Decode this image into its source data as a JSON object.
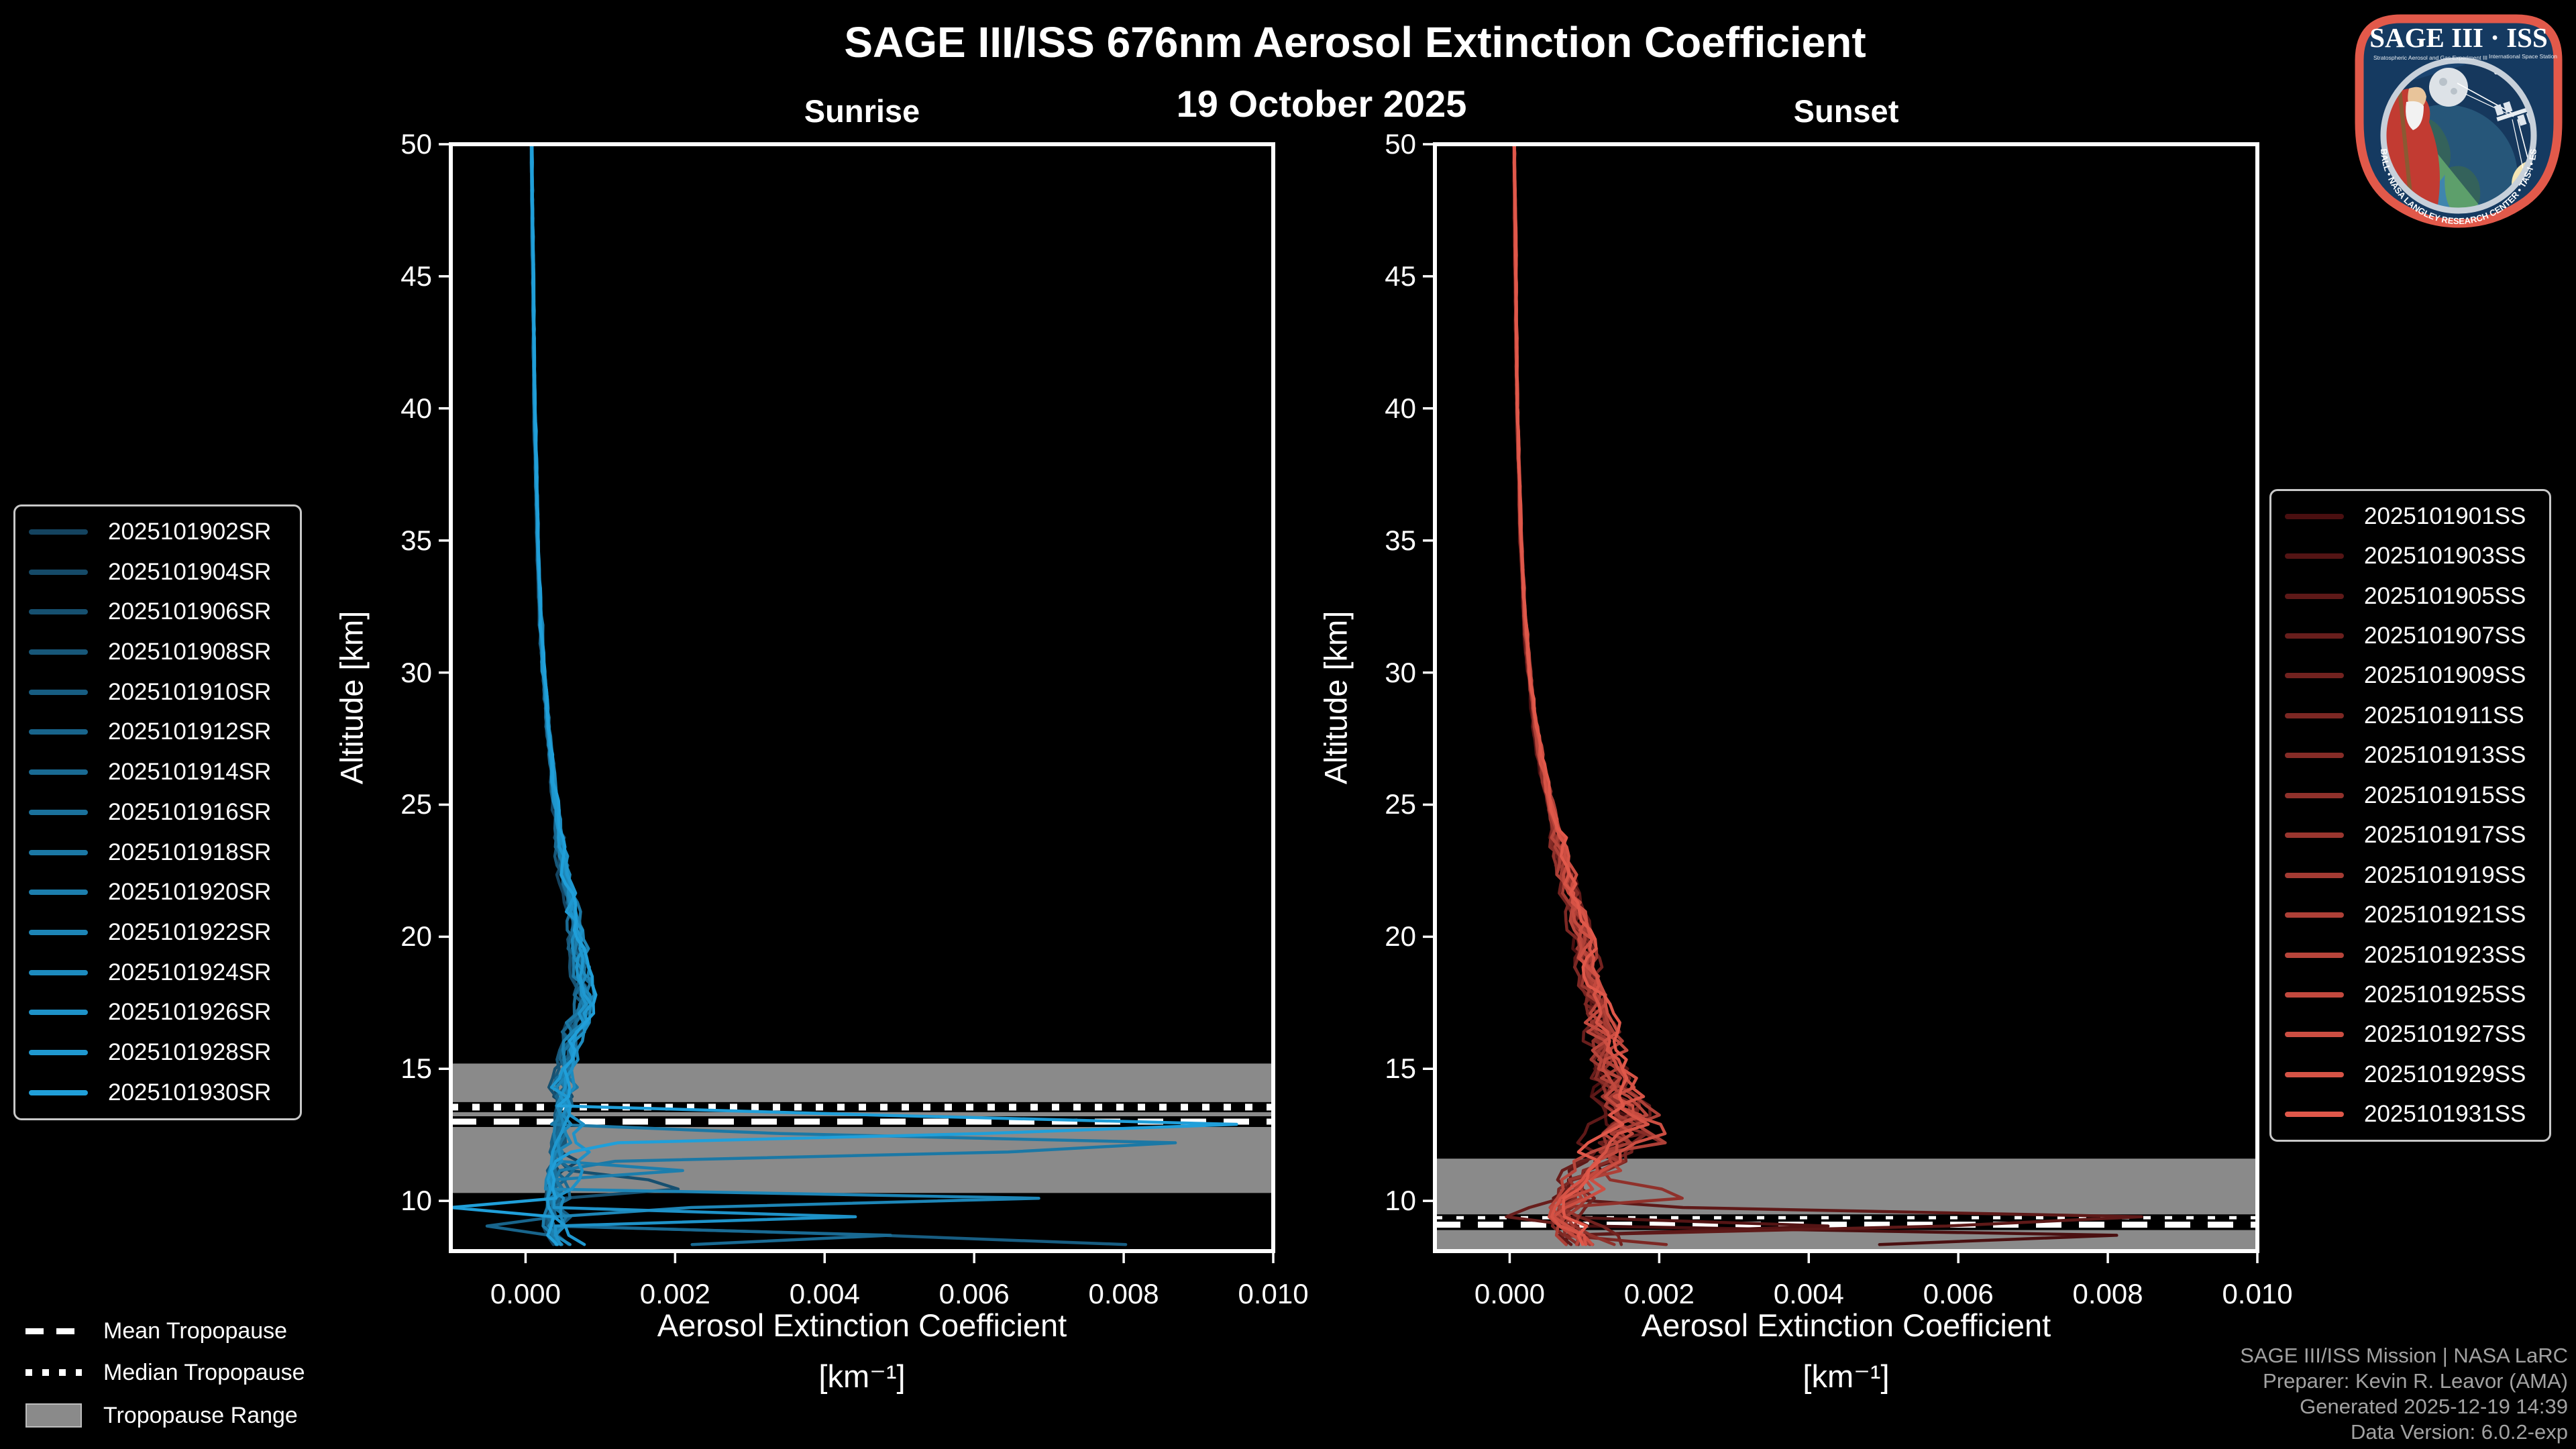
{
  "figure": {
    "title": "SAGE III/ISS 676nm Aerosol Extinction Coefficient",
    "subtitle": "19 October 2025",
    "background_color": "#000000",
    "footer": {
      "color": "#a2a2a2",
      "lines": [
        "SAGE III/ISS Mission | NASA LaRC",
        "Preparer: Kevin R. Leavor (AMA)",
        "Generated 2025-12-19 14:39",
        "Data Version: 6.0.2-exp"
      ]
    },
    "logo": {
      "title": "SAGE III · ISS",
      "subtitle_left": "Stratospheric Aerosol and Gas Experiment III",
      "subtitle_right": "International Space Station",
      "ring_text": "BALL • NASA LANGLEY RESEARCH CENTER • TAS-I • ESA",
      "border_color": "#e2594a",
      "background_color": "#153a61"
    },
    "tropopause_legend": {
      "mean_label": "Mean Tropopause",
      "median_label": "Median Tropopause",
      "range_label": "Tropopause Range",
      "range_color": "#8a8a8a"
    }
  },
  "chart_data": {
    "type": "line",
    "title": "SAGE III/ISS 676nm Aerosol Extinction Coefficient",
    "subtitle": "19 October 2025",
    "xlabel_line1": "Aerosol Extinction Coefficient",
    "xlabel_line2": "[km⁻¹]",
    "ylabel": "Altitude [km]",
    "xlim": [
      -0.001,
      0.01
    ],
    "ylim": [
      8.1,
      50
    ],
    "grid": false,
    "xtick_values": [
      0.0,
      0.002,
      0.004,
      0.006,
      0.008,
      0.01
    ],
    "xtick_labels": [
      "0.000",
      "0.002",
      "0.004",
      "0.006",
      "0.008",
      "0.010"
    ],
    "ytick_values": [
      10,
      15,
      20,
      25,
      30,
      35,
      40,
      45,
      50
    ],
    "tropopause_band_color": "#8a8a8a",
    "panels": [
      {
        "id": "sunrise",
        "title": "Sunrise",
        "legend_position": "outside-left",
        "color_start": "#14435f",
        "color_end": "#209fd9",
        "seed": 11,
        "series_labels": [
          "2025101902SR",
          "2025101904SR",
          "2025101906SR",
          "2025101908SR",
          "2025101910SR",
          "2025101912SR",
          "2025101914SR",
          "2025101916SR",
          "2025101918SR",
          "2025101920SR",
          "2025101922SR",
          "2025101924SR",
          "2025101926SR",
          "2025101928SR",
          "2025101930SR"
        ],
        "tropopause": {
          "mean_km": 13.0,
          "median_km": 13.55,
          "range_km": [
            10.3,
            15.2
          ]
        },
        "mean_profile": [
          [
            50,
            8e-05
          ],
          [
            45,
            0.0001
          ],
          [
            40,
            0.00012
          ],
          [
            35,
            0.00016
          ],
          [
            32,
            0.0002
          ],
          [
            30,
            0.00024
          ],
          [
            28,
            0.0003
          ],
          [
            26,
            0.00036
          ],
          [
            24,
            0.00044
          ],
          [
            22,
            0.00054
          ],
          [
            20,
            0.00066
          ],
          [
            19,
            0.00074
          ],
          [
            18,
            0.00082
          ],
          [
            17.3,
            0.00078
          ],
          [
            16.5,
            0.00065
          ],
          [
            15.5,
            0.00056
          ],
          [
            14.5,
            0.00052
          ],
          [
            13.5,
            0.0005
          ],
          [
            12.5,
            0.00046
          ],
          [
            11.5,
            0.00043
          ],
          [
            10.5,
            0.0004
          ],
          [
            9.5,
            0.00036
          ],
          [
            8.8,
            0.0004
          ],
          [
            8.3,
            0.0005
          ]
        ],
        "spikes": [
          {
            "series": 14,
            "altitude_km": 12.85,
            "peak": 0.0102,
            "width_km": 1.4
          },
          {
            "series": 8,
            "altitude_km": 12.1,
            "peak": 0.0102,
            "width_km": 1.3
          },
          {
            "series": 10,
            "altitude_km": 10.05,
            "peak": 0.0078,
            "width_km": 0.8
          },
          {
            "series": 4,
            "altitude_km": 8.45,
            "peak": 0.0102,
            "width_km": 0.9
          },
          {
            "series": 6,
            "altitude_km": 8.6,
            "peak": 0.0067,
            "width_km": 0.7
          },
          {
            "series": 12,
            "altitude_km": 9.35,
            "peak": 0.0052,
            "width_km": 0.6
          },
          {
            "series": 2,
            "altitude_km": 10.6,
            "peak": 0.0033,
            "width_km": 0.7
          },
          {
            "series": 9,
            "altitude_km": 11.2,
            "peak": 0.0025,
            "width_km": 0.5
          },
          {
            "series": 14,
            "altitude_km": 9.75,
            "peak": -0.001,
            "width_km": 0.45
          },
          {
            "series": 5,
            "altitude_km": 9.0,
            "peak": -0.0008,
            "width_km": 0.4
          }
        ]
      },
      {
        "id": "sunset",
        "title": "Sunset",
        "legend_position": "outside-right",
        "color_start": "#4a0f10",
        "color_end": "#e0584a",
        "seed": 77,
        "series_labels": [
          "2025101901SS",
          "2025101903SS",
          "2025101905SS",
          "2025101907SS",
          "2025101909SS",
          "2025101911SS",
          "2025101913SS",
          "2025101915SS",
          "2025101917SS",
          "2025101919SS",
          "2025101921SS",
          "2025101923SS",
          "2025101925SS",
          "2025101927SS",
          "2025101929SS",
          "2025101931SS"
        ],
        "tropopause": {
          "mean_km": 9.1,
          "median_km": 9.3,
          "range_km": [
            8.1,
            11.6
          ]
        },
        "mean_profile": [
          [
            50,
            6e-05
          ],
          [
            45,
            8e-05
          ],
          [
            40,
            0.0001
          ],
          [
            35,
            0.00015
          ],
          [
            32,
            0.0002
          ],
          [
            30,
            0.00026
          ],
          [
            28,
            0.00034
          ],
          [
            26,
            0.00046
          ],
          [
            24,
            0.00062
          ],
          [
            22,
            0.0008
          ],
          [
            20,
            0.00096
          ],
          [
            19,
            0.00104
          ],
          [
            18,
            0.00112
          ],
          [
            17,
            0.00118
          ],
          [
            16,
            0.00126
          ],
          [
            15,
            0.00136
          ],
          [
            14,
            0.00146
          ],
          [
            13.2,
            0.00158
          ],
          [
            12.5,
            0.00152
          ],
          [
            11.8,
            0.00132
          ],
          [
            11,
            0.00104
          ],
          [
            10.3,
            0.00082
          ],
          [
            9.6,
            0.00062
          ],
          [
            9.0,
            0.00078
          ],
          [
            8.3,
            0.001
          ]
        ],
        "spikes": [
          {
            "series": 2,
            "altitude_km": 9.3,
            "peak": 0.0102,
            "width_km": 1.1
          },
          {
            "series": 0,
            "altitude_km": 8.6,
            "peak": 0.0102,
            "width_km": 0.9
          },
          {
            "series": 1,
            "altitude_km": 9.0,
            "peak": 0.005,
            "width_km": 0.6
          },
          {
            "series": 5,
            "altitude_km": 8.45,
            "peak": 0.003,
            "width_km": 0.5
          },
          {
            "series": 7,
            "altitude_km": 10.25,
            "peak": 0.0036,
            "width_km": 0.7
          },
          {
            "series": 3,
            "altitude_km": 9.55,
            "peak": -0.001,
            "width_km": 0.5
          },
          {
            "series": 10,
            "altitude_km": 12.3,
            "peak": 0.0025,
            "width_km": 0.6
          }
        ]
      }
    ]
  },
  "layout_note": "black-background matplotlib-style figure, two altitude-profile panels"
}
